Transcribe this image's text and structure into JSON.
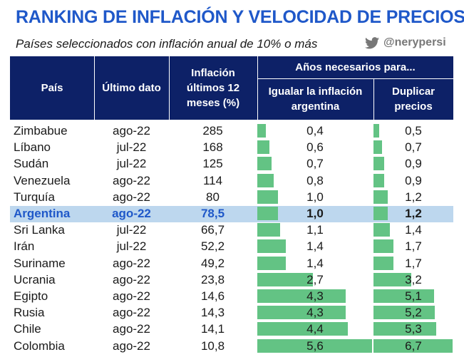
{
  "title": "RANKING DE INFLACIÓN Y VELOCIDAD DE PRECIOS",
  "subtitle": "Países seleccionados con inflación anual de 10% o más",
  "twitter": {
    "icon": "twitter-bird-icon",
    "handle": "@nerypersi"
  },
  "colors": {
    "title": "#1f58c9",
    "header_bg": "#0d2167",
    "highlight_row": "#bdd7ee",
    "bar": "#63c384"
  },
  "headers": {
    "country": "País",
    "last_data": "Último dato",
    "inflation": [
      "Inflación",
      "últimos 12",
      "meses (%)"
    ],
    "years_group": "Años necesarios para...",
    "match_arg": [
      "Igualar la inflación",
      "argentina"
    ],
    "double_prices": [
      "Duplicar",
      "precios"
    ]
  },
  "rows": [
    {
      "country": "Zimbabue",
      "date": "ago-22",
      "inflation": "285",
      "years_match": "0,4",
      "years_double": "0,5"
    },
    {
      "country": "Líbano",
      "date": "jul-22",
      "inflation": "168",
      "years_match": "0,6",
      "years_double": "0,7"
    },
    {
      "country": "Sudán",
      "date": "jul-22",
      "inflation": "125",
      "years_match": "0,7",
      "years_double": "0,9"
    },
    {
      "country": "Venezuela",
      "date": "ago-22",
      "inflation": "114",
      "years_match": "0,8",
      "years_double": "0,9"
    },
    {
      "country": "Turquía",
      "date": "ago-22",
      "inflation": "80",
      "years_match": "1,0",
      "years_double": "1,2"
    },
    {
      "country": "Argentina",
      "date": "ago-22",
      "inflation": "78,5",
      "years_match": "1,0",
      "years_double": "1,2",
      "highlight": true
    },
    {
      "country": "Sri Lanka",
      "date": "jul-22",
      "inflation": "66,7",
      "years_match": "1,1",
      "years_double": "1,4"
    },
    {
      "country": "Irán",
      "date": "jul-22",
      "inflation": "52,2",
      "years_match": "1,4",
      "years_double": "1,7"
    },
    {
      "country": "Suriname",
      "date": "ago-22",
      "inflation": "49,2",
      "years_match": "1,4",
      "years_double": "1,7"
    },
    {
      "country": "Ucrania",
      "date": "ago-22",
      "inflation": "23,8",
      "years_match": "2,7",
      "years_double": "3,2"
    },
    {
      "country": "Egipto",
      "date": "ago-22",
      "inflation": "14,6",
      "years_match": "4,3",
      "years_double": "5,1"
    },
    {
      "country": "Rusia",
      "date": "ago-22",
      "inflation": "14,3",
      "years_match": "4,3",
      "years_double": "5,2"
    },
    {
      "country": "Chile",
      "date": "ago-22",
      "inflation": "14,1",
      "years_match": "4,4",
      "years_double": "5,3"
    },
    {
      "country": "Colombia",
      "date": "ago-22",
      "inflation": "10,8",
      "years_match": "5,6",
      "years_double": "6,7"
    }
  ]
}
